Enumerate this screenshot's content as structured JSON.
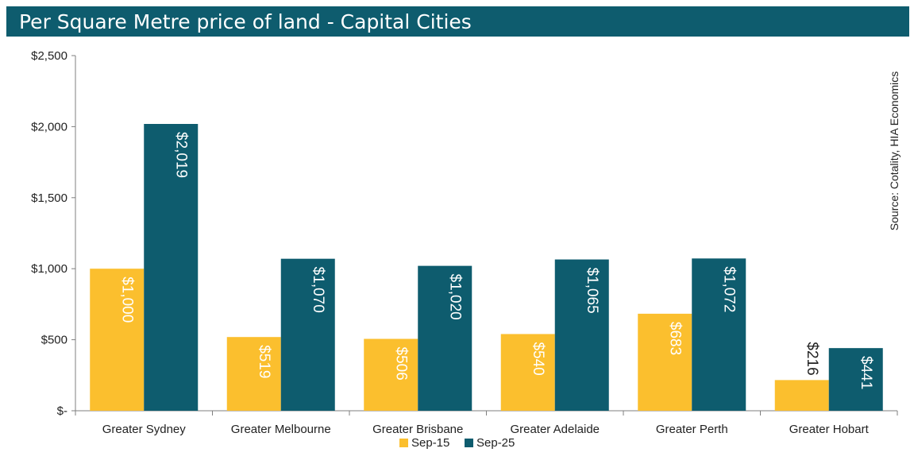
{
  "chart_data": {
    "type": "bar",
    "title": "Per Square Metre price of land - Capital Cities",
    "source": "Source: Cotality, HIA Economics",
    "categories": [
      "Greater Sydney",
      "Greater Melbourne",
      "Greater Brisbane",
      "Greater Adelaide",
      "Greater Perth",
      "Greater Hobart"
    ],
    "series": [
      {
        "name": "Sep-15",
        "color": "#fbbf2e",
        "values": [
          1000,
          519,
          506,
          540,
          683,
          216
        ],
        "labels": [
          "$1,000",
          "$519",
          "$506",
          "$540",
          "$683",
          "$216"
        ]
      },
      {
        "name": "Sep-25",
        "color": "#0e5c6e",
        "values": [
          2019,
          1070,
          1020,
          1065,
          1072,
          441
        ],
        "labels": [
          "$2,019",
          "$1,070",
          "$1,020",
          "$1,065",
          "$1,072",
          "$441"
        ]
      }
    ],
    "ylim": [
      0,
      2500
    ],
    "yticks": [
      0,
      500,
      1000,
      1500,
      2000,
      2500
    ],
    "ytick_labels": [
      "$-",
      "$500",
      "$1,000",
      "$1,500",
      "$2,000",
      "$2,500"
    ],
    "grid": false,
    "legend_position": "bottom"
  }
}
